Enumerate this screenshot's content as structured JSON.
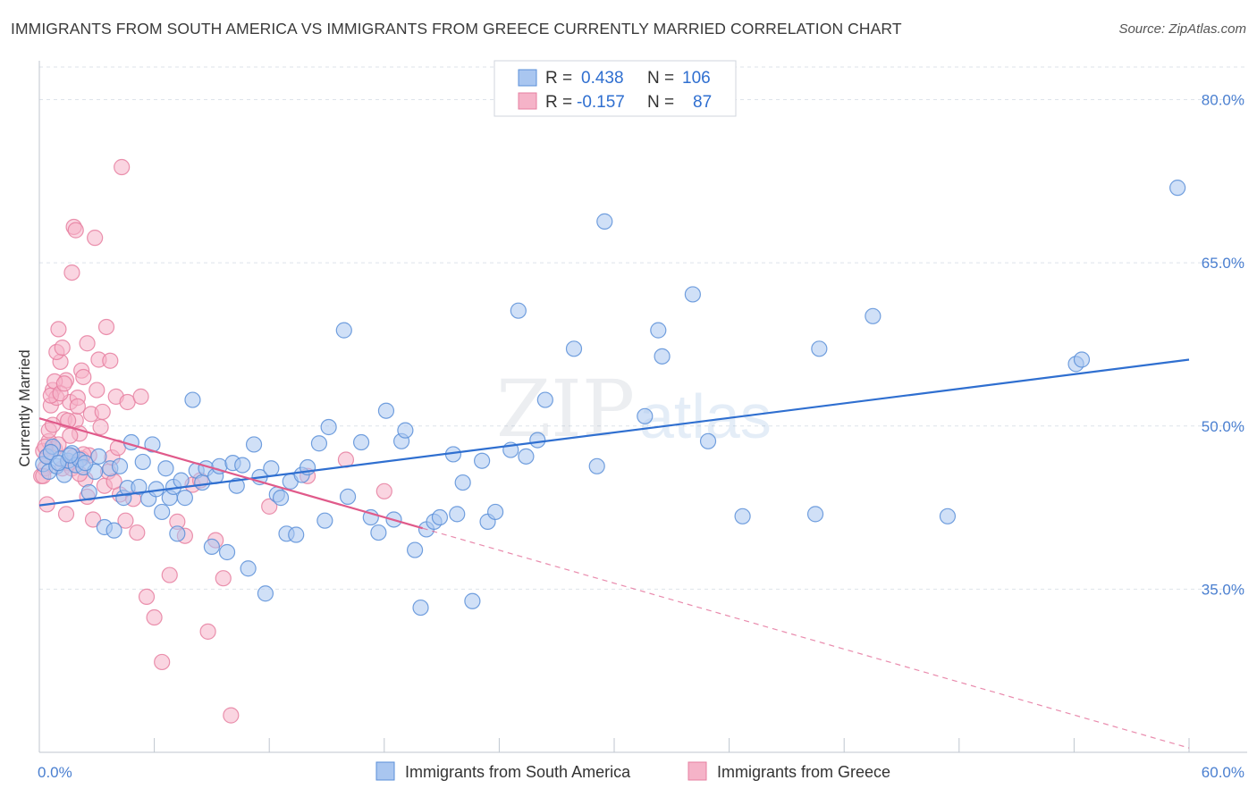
{
  "header": {
    "title": "IMMIGRANTS FROM SOUTH AMERICA VS IMMIGRANTS FROM GREECE CURRENTLY MARRIED CORRELATION CHART",
    "source": "Source: ZipAtlas.com"
  },
  "watermark": {
    "zip": "ZIP",
    "atlas": "atlas"
  },
  "legend": {
    "r_label": "R =",
    "n_label": "N =",
    "rows": [
      {
        "r": "0.438",
        "n": "106",
        "color": "#a9c6f0"
      },
      {
        "r": "-0.157",
        "n": "87",
        "color": "#f5b3c8"
      }
    ]
  },
  "colors": {
    "blue_fill": "#a9c6f0",
    "blue_stroke": "#5a8fd8",
    "blue_line": "#2f6fd0",
    "pink_fill": "#f5b3c8",
    "pink_stroke": "#e67fa0",
    "pink_line": "#e05a8a",
    "grid": "#dde3ea",
    "axis_text": "#4a7fd0"
  },
  "chart_data": {
    "type": "scatter",
    "title": "IMMIGRANTS FROM SOUTH AMERICA VS IMMIGRANTS FROM GREECE CURRENTLY MARRIED CORRELATION CHART",
    "xlabel": "",
    "ylabel": "Currently Married",
    "xlim": [
      0,
      60
    ],
    "ylim": [
      20,
      83
    ],
    "x_tick_labels": [
      "0.0%",
      "60.0%"
    ],
    "y_ticks": [
      35,
      50,
      65,
      80
    ],
    "y_tick_labels": [
      "35.0%",
      "50.0%",
      "65.0%",
      "80.0%"
    ],
    "grid": true,
    "series": [
      {
        "name": "Immigrants from South America",
        "r": 0.438,
        "n": 106,
        "trend": {
          "x": [
            0,
            60
          ],
          "y": [
            42.7,
            56.1
          ],
          "dashed_to": null
        },
        "points": [
          [
            0.2,
            46.5
          ],
          [
            0.4,
            47.2
          ],
          [
            0.5,
            45.8
          ],
          [
            0.7,
            48.1
          ],
          [
            0.9,
            46.3
          ],
          [
            1.1,
            47.0
          ],
          [
            1.3,
            45.5
          ],
          [
            1.5,
            46.8
          ],
          [
            1.7,
            47.5
          ],
          [
            1.9,
            46.4
          ],
          [
            2.1,
            46.9
          ],
          [
            2.3,
            46.2
          ],
          [
            2.6,
            43.9
          ],
          [
            2.9,
            45.8
          ],
          [
            3.1,
            47.2
          ],
          [
            3.4,
            40.7
          ],
          [
            3.7,
            46.1
          ],
          [
            3.9,
            40.4
          ],
          [
            4.2,
            46.3
          ],
          [
            4.4,
            43.4
          ],
          [
            4.6,
            44.3
          ],
          [
            4.8,
            48.5
          ],
          [
            5.2,
            44.4
          ],
          [
            5.4,
            46.7
          ],
          [
            5.7,
            43.3
          ],
          [
            5.9,
            48.3
          ],
          [
            6.1,
            44.2
          ],
          [
            6.4,
            42.1
          ],
          [
            6.6,
            46.1
          ],
          [
            6.8,
            43.4
          ],
          [
            7.0,
            44.4
          ],
          [
            7.2,
            40.1
          ],
          [
            7.4,
            45.0
          ],
          [
            7.6,
            43.4
          ],
          [
            8.0,
            52.4
          ],
          [
            8.2,
            45.9
          ],
          [
            8.5,
            44.8
          ],
          [
            8.7,
            46.1
          ],
          [
            9.0,
            38.9
          ],
          [
            9.2,
            45.4
          ],
          [
            9.4,
            46.3
          ],
          [
            9.8,
            38.4
          ],
          [
            10.1,
            46.6
          ],
          [
            10.3,
            44.5
          ],
          [
            10.6,
            46.4
          ],
          [
            10.9,
            36.9
          ],
          [
            11.2,
            48.3
          ],
          [
            11.5,
            45.3
          ],
          [
            11.8,
            34.6
          ],
          [
            12.1,
            46.1
          ],
          [
            12.4,
            43.7
          ],
          [
            12.6,
            43.4
          ],
          [
            12.9,
            40.1
          ],
          [
            13.1,
            44.9
          ],
          [
            13.4,
            40.0
          ],
          [
            13.7,
            45.5
          ],
          [
            14.0,
            46.2
          ],
          [
            14.6,
            48.4
          ],
          [
            14.9,
            41.3
          ],
          [
            15.1,
            49.9
          ],
          [
            15.9,
            58.8
          ],
          [
            16.1,
            43.5
          ],
          [
            16.8,
            48.5
          ],
          [
            17.3,
            41.6
          ],
          [
            17.7,
            40.2
          ],
          [
            18.1,
            51.4
          ],
          [
            18.5,
            41.4
          ],
          [
            18.9,
            48.6
          ],
          [
            19.1,
            49.6
          ],
          [
            19.6,
            38.6
          ],
          [
            19.9,
            33.3
          ],
          [
            20.2,
            40.5
          ],
          [
            20.6,
            41.2
          ],
          [
            20.9,
            41.6
          ],
          [
            21.6,
            47.4
          ],
          [
            21.8,
            41.9
          ],
          [
            22.1,
            44.8
          ],
          [
            22.6,
            33.9
          ],
          [
            23.1,
            46.8
          ],
          [
            23.4,
            41.2
          ],
          [
            23.8,
            42.1
          ],
          [
            24.6,
            47.8
          ],
          [
            25.0,
            60.6
          ],
          [
            25.4,
            47.2
          ],
          [
            26.0,
            48.7
          ],
          [
            26.4,
            52.4
          ],
          [
            27.9,
            57.1
          ],
          [
            29.1,
            46.3
          ],
          [
            29.5,
            68.8
          ],
          [
            31.6,
            50.9
          ],
          [
            32.3,
            58.8
          ],
          [
            32.5,
            56.4
          ],
          [
            34.1,
            62.1
          ],
          [
            34.9,
            48.6
          ],
          [
            36.7,
            41.7
          ],
          [
            40.5,
            41.9
          ],
          [
            40.7,
            57.1
          ],
          [
            43.5,
            60.1
          ],
          [
            47.4,
            41.7
          ],
          [
            54.1,
            55.7
          ],
          [
            54.4,
            56.1
          ],
          [
            59.4,
            71.9
          ],
          [
            0.6,
            47.6
          ],
          [
            1.0,
            46.6
          ],
          [
            1.6,
            47.3
          ],
          [
            2.4,
            46.6
          ]
        ]
      },
      {
        "name": "Immigrants from Greece",
        "r": -0.157,
        "n": 87,
        "trend": {
          "x": [
            0,
            20
          ],
          "y": [
            50.7,
            40.6
          ],
          "dashed_to": [
            60,
            20.4
          ]
        },
        "points": [
          [
            0.1,
            45.4
          ],
          [
            0.2,
            47.7
          ],
          [
            0.3,
            46.1
          ],
          [
            0.4,
            42.8
          ],
          [
            0.5,
            48.6
          ],
          [
            0.6,
            51.9
          ],
          [
            0.7,
            53.3
          ],
          [
            0.8,
            47.9
          ],
          [
            0.9,
            52.6
          ],
          [
            1.0,
            48.3
          ],
          [
            1.1,
            55.9
          ],
          [
            1.2,
            46.1
          ],
          [
            1.3,
            50.6
          ],
          [
            1.4,
            54.2
          ],
          [
            1.5,
            46.6
          ],
          [
            1.6,
            52.2
          ],
          [
            1.7,
            46.1
          ],
          [
            1.8,
            47.2
          ],
          [
            1.9,
            50.5
          ],
          [
            2.0,
            52.6
          ],
          [
            2.1,
            49.3
          ],
          [
            2.2,
            55.1
          ],
          [
            2.3,
            54.5
          ],
          [
            2.4,
            45.1
          ],
          [
            2.5,
            43.5
          ],
          [
            2.6,
            47.3
          ],
          [
            2.8,
            41.4
          ],
          [
            3.0,
            53.3
          ],
          [
            3.2,
            49.9
          ],
          [
            3.4,
            44.5
          ],
          [
            3.6,
            45.8
          ],
          [
            3.8,
            47.1
          ],
          [
            4.0,
            52.7
          ],
          [
            4.2,
            43.7
          ],
          [
            4.5,
            41.3
          ],
          [
            0.3,
            48.1
          ],
          [
            0.5,
            49.6
          ],
          [
            0.6,
            52.8
          ],
          [
            0.7,
            50.1
          ],
          [
            0.8,
            54.1
          ],
          [
            0.9,
            56.8
          ],
          [
            1.0,
            58.9
          ],
          [
            1.1,
            53.0
          ],
          [
            1.2,
            57.2
          ],
          [
            1.3,
            53.9
          ],
          [
            1.4,
            41.9
          ],
          [
            1.5,
            50.5
          ],
          [
            1.6,
            49.1
          ],
          [
            1.7,
            64.1
          ],
          [
            1.8,
            68.3
          ],
          [
            1.9,
            68.0
          ],
          [
            2.0,
            51.8
          ],
          [
            2.1,
            45.6
          ],
          [
            2.2,
            47.0
          ],
          [
            2.3,
            47.4
          ],
          [
            2.5,
            57.6
          ],
          [
            2.7,
            51.1
          ],
          [
            2.9,
            67.3
          ],
          [
            3.1,
            56.1
          ],
          [
            3.3,
            51.3
          ],
          [
            3.5,
            59.1
          ],
          [
            3.7,
            56.0
          ],
          [
            3.9,
            44.9
          ],
          [
            4.1,
            48.0
          ],
          [
            4.3,
            73.8
          ],
          [
            4.6,
            52.2
          ],
          [
            4.9,
            43.3
          ],
          [
            5.1,
            40.2
          ],
          [
            5.3,
            52.7
          ],
          [
            5.6,
            34.3
          ],
          [
            6.0,
            32.4
          ],
          [
            6.4,
            28.3
          ],
          [
            6.8,
            36.3
          ],
          [
            7.2,
            41.2
          ],
          [
            7.6,
            39.9
          ],
          [
            8.0,
            44.6
          ],
          [
            8.4,
            45.0
          ],
          [
            8.8,
            31.1
          ],
          [
            9.2,
            39.5
          ],
          [
            9.6,
            36.0
          ],
          [
            10.0,
            23.4
          ],
          [
            12.0,
            42.6
          ],
          [
            14.0,
            45.4
          ],
          [
            16.0,
            46.9
          ],
          [
            18.0,
            44.0
          ],
          [
            0.2,
            45.4
          ],
          [
            0.4,
            47.2
          ]
        ]
      }
    ]
  },
  "bottom_legend": {
    "items": [
      {
        "label": "Immigrants from South America",
        "color": "#a9c6f0"
      },
      {
        "label": "Immigrants from Greece",
        "color": "#f5b3c8"
      }
    ]
  }
}
